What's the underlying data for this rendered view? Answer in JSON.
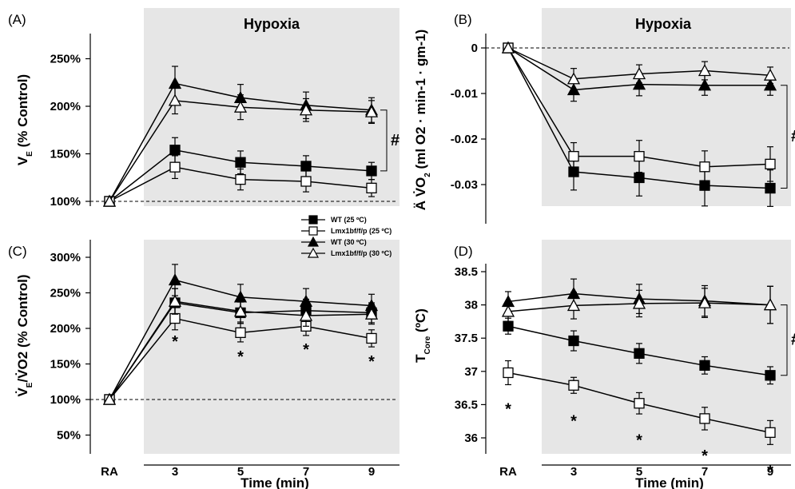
{
  "colors": {
    "shade": "#e6e6e6",
    "ink": "#000000",
    "open_fill": "#ffffff"
  },
  "legend": {
    "entries": [
      {
        "series": "WT (25 ºC)",
        "marker": "square-filled"
      },
      {
        "series": "Lmx1bf/f/p (25 ºC)",
        "marker": "square-open"
      },
      {
        "series": "WT (30 ºC)",
        "marker": "triangle-filled"
      },
      {
        "series": "Lmx1bf/f/p (30 ºC)",
        "marker": "triangle-open"
      }
    ]
  },
  "shared": {
    "x_title": "Time (min)",
    "shade_label": "Hypoxia"
  },
  "chart_data": [
    {
      "panel": "(A)",
      "type": "line",
      "shaded_region": "Hypoxia",
      "categories": [
        "RA",
        "3",
        "5",
        "7",
        "9"
      ],
      "ylabel_main": "V",
      "ylabel_sub": "E",
      "ylabel_rest": " (% Control)",
      "ylim": [
        100,
        270
      ],
      "yticks": [
        100,
        150,
        200,
        250
      ],
      "ytick_labels": [
        "100%",
        "150%",
        "200%",
        "250%"
      ],
      "baseline": 100,
      "series": [
        {
          "name": "WT (25 ºC)",
          "marker": "square-filled",
          "values": [
            100,
            154,
            141,
            137,
            132
          ],
          "err": [
            0,
            13,
            12,
            11,
            9
          ]
        },
        {
          "name": "Lmx1bf/f/p (25 ºC)",
          "marker": "square-open",
          "values": [
            100,
            136,
            123,
            121,
            114
          ],
          "err": [
            0,
            12,
            11,
            11,
            9
          ]
        },
        {
          "name": "WT (30 ºC)",
          "marker": "triangle-filled",
          "values": [
            100,
            224,
            209,
            201,
            196
          ],
          "err": [
            0,
            18,
            14,
            14,
            13
          ]
        },
        {
          "name": "Lmx1bf/f/p (30 ºC)",
          "marker": "triangle-open",
          "values": [
            100,
            206,
            199,
            196,
            194
          ],
          "err": [
            0,
            14,
            13,
            12,
            12
          ]
        }
      ],
      "annotations": [
        {
          "text": "#",
          "type": "bracket",
          "y_range": [
            132,
            196
          ]
        }
      ]
    },
    {
      "panel": "(B)",
      "type": "line",
      "shaded_region": "Hypoxia",
      "categories": [
        "RA",
        "3",
        "5",
        "7",
        "9"
      ],
      "ylabel_main": "Ä V̇O",
      "ylabel_sub": "2",
      "ylabel_rest": " (ml O2 · min-1 · gm-1)",
      "ylim": [
        -0.04,
        0.004
      ],
      "yticks": [
        0,
        -0.01,
        -0.02,
        -0.03
      ],
      "ytick_labels": [
        "0",
        "-0.01",
        "-0.02",
        "-0.03"
      ],
      "baseline": 0,
      "series": [
        {
          "name": "WT (25 ºC)",
          "marker": "square-filled",
          "values": [
            0,
            -0.0272,
            -0.0285,
            -0.0302,
            -0.0308
          ],
          "err": [
            0,
            0.004,
            0.004,
            0.0045,
            0.004
          ]
        },
        {
          "name": "Lmx1bf/f/p (25 ºC)",
          "marker": "square-open",
          "values": [
            0,
            -0.0238,
            -0.0238,
            -0.0261,
            -0.0255
          ],
          "err": [
            0,
            0.003,
            0.0035,
            0.0035,
            0.0038
          ]
        },
        {
          "name": "WT (30 ºC)",
          "marker": "triangle-filled",
          "values": [
            0,
            -0.0092,
            -0.008,
            -0.0082,
            -0.0082
          ],
          "err": [
            0,
            0.0025,
            0.0025,
            0.0022,
            0.0022
          ]
        },
        {
          "name": "Lmx1bf/f/p (30 ºC)",
          "marker": "triangle-open",
          "values": [
            0,
            -0.0068,
            -0.0057,
            -0.005,
            -0.006
          ],
          "err": [
            0,
            0.0023,
            0.002,
            0.002,
            0.0018
          ]
        }
      ],
      "annotations": [
        {
          "text": "#",
          "type": "bracket",
          "y_range": [
            -0.0308,
            -0.0082
          ]
        }
      ]
    },
    {
      "panel": "(C)",
      "type": "line",
      "shaded_region": "Hypoxia",
      "categories": [
        "RA",
        "3",
        "5",
        "7",
        "9"
      ],
      "ylabel_main": "V̇",
      "ylabel_sub": "E",
      "ylabel_rest": "/V̇O2 (% Control)",
      "ylim": [
        50,
        310
      ],
      "yticks": [
        50,
        100,
        150,
        200,
        250,
        300
      ],
      "ytick_labels": [
        "50%",
        "100%",
        "150%",
        "200%",
        "250%",
        "300%"
      ],
      "baseline": 100,
      "series": [
        {
          "name": "WT (25 ºC)",
          "marker": "square-filled",
          "values": [
            100,
            236,
            222,
            225,
            222
          ],
          "err": [
            0,
            20,
            15,
            16,
            14
          ]
        },
        {
          "name": "Lmx1bf/f/p (25 ºC)",
          "marker": "square-open",
          "values": [
            100,
            214,
            194,
            203,
            186
          ],
          "err": [
            0,
            16,
            13,
            13,
            12
          ]
        },
        {
          "name": "WT (30 ºC)",
          "marker": "triangle-filled",
          "values": [
            100,
            268,
            244,
            238,
            232
          ],
          "err": [
            0,
            22,
            18,
            18,
            16
          ]
        },
        {
          "name": "Lmx1bf/f/p (30 ºC)",
          "marker": "triangle-open",
          "values": [
            100,
            238,
            224,
            218,
            220
          ],
          "err": [
            0,
            18,
            15,
            15,
            14
          ]
        }
      ],
      "annotations": [
        {
          "text": "*",
          "x": "3",
          "y": 183
        },
        {
          "text": "*",
          "x": "5",
          "y": 162
        },
        {
          "text": "*",
          "x": "7",
          "y": 172
        },
        {
          "text": "*",
          "x": "9",
          "y": 155
        }
      ]
    },
    {
      "panel": "(D)",
      "type": "line",
      "shaded_region": "Hypoxia",
      "categories": [
        "RA",
        "3",
        "5",
        "7",
        "9"
      ],
      "ylabel_main": "T",
      "ylabel_sub": "Core",
      "ylabel_rest": " (ºC)",
      "ylim": [
        35.75,
        38.75
      ],
      "yticks": [
        36,
        36.5,
        37,
        37.5,
        38,
        38.5
      ],
      "ytick_labels": [
        "36",
        "36.5",
        "37",
        "37.5",
        "38",
        "38.5"
      ],
      "baseline": null,
      "series": [
        {
          "name": "WT (25 ºC)",
          "marker": "square-filled",
          "values": [
            37.68,
            37.46,
            37.27,
            37.09,
            36.94
          ],
          "err": [
            0.12,
            0.15,
            0.15,
            0.13,
            0.13
          ]
        },
        {
          "name": "Lmx1bf/f/p (25 ºC)",
          "marker": "square-open",
          "values": [
            36.98,
            36.79,
            36.52,
            36.29,
            36.08
          ],
          "err": [
            0.18,
            0.12,
            0.16,
            0.17,
            0.18
          ]
        },
        {
          "name": "WT (30 ºC)",
          "marker": "triangle-filled",
          "values": [
            38.05,
            38.17,
            38.09,
            38.06,
            38.0
          ],
          "err": [
            0.15,
            0.22,
            0.22,
            0.23,
            0.28
          ]
        },
        {
          "name": "Lmx1bf/f/p (30 ºC)",
          "marker": "triangle-open",
          "values": [
            37.9,
            37.99,
            38.02,
            38.03,
            38.0
          ],
          "err": [
            0.15,
            0.2,
            0.2,
            0.22,
            0.28
          ]
        }
      ],
      "annotations": [
        {
          "text": "*",
          "x": "RA",
          "y": 36.45
        },
        {
          "text": "*",
          "x": "3",
          "y": 36.27
        },
        {
          "text": "*",
          "x": "5",
          "y": 35.98
        },
        {
          "text": "*",
          "x": "7",
          "y": 35.75
        },
        {
          "text": "*",
          "x": "9",
          "y": 35.52
        },
        {
          "text": "#",
          "type": "bracket",
          "y_range": [
            36.94,
            38.0
          ]
        }
      ]
    }
  ]
}
